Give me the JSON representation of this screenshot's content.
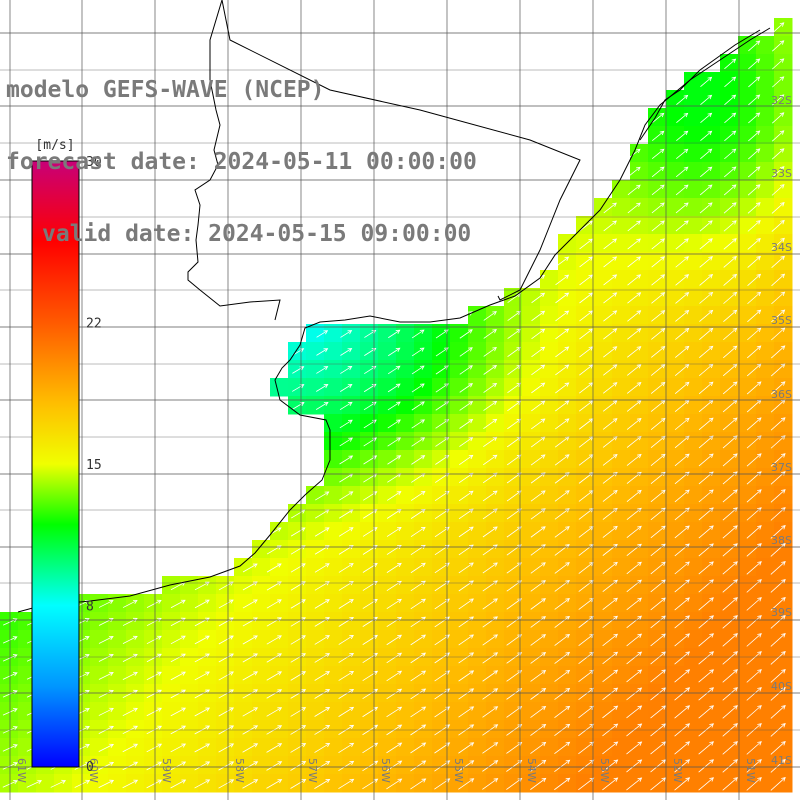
{
  "header": {
    "model": "modelo GEFS-WAVE (NCEP)",
    "forecast": "forecast date: 2024-05-11 00:00:00",
    "valid": "valid date: 2024-05-15 09:00:00"
  },
  "colorbar": {
    "unit": "[m/s]",
    "ticks": [
      "30",
      "22",
      "15",
      "8",
      "0"
    ],
    "min": 0,
    "max": 30
  },
  "latitude_labels": [
    "32S",
    "33S",
    "34S",
    "35S",
    "36S",
    "37S",
    "38S",
    "39S",
    "40S",
    "41S"
  ],
  "longitude_labels": [
    "61W",
    "60W",
    "59W",
    "58W",
    "57W",
    "56W",
    "55W",
    "54W",
    "53W",
    "52W",
    "51W"
  ],
  "colors": {
    "gridline": "#555555",
    "coastline": "#000000",
    "land": "#ffffff",
    "text": "#7a7a7a",
    "arrow": "#ffffff"
  },
  "wind_field": {
    "speed_range_ms": [
      5,
      20
    ],
    "direction": "from SW toward NE"
  }
}
